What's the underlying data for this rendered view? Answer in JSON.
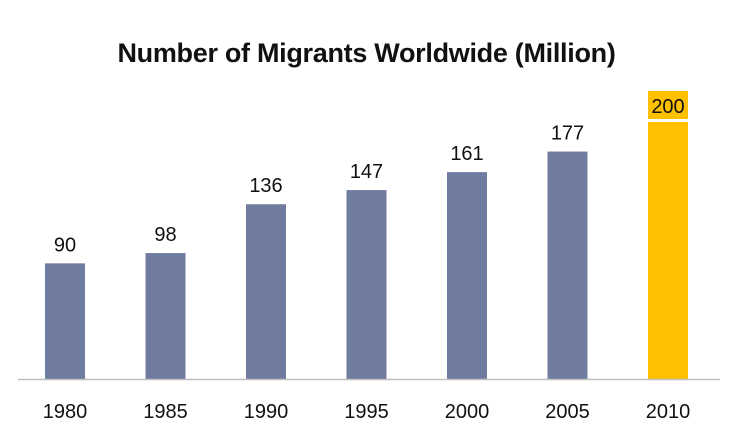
{
  "chart_data": {
    "type": "bar",
    "title": "Number of Migrants Worldwide (Million)",
    "categories": [
      "1980",
      "1985",
      "1990",
      "1995",
      "2000",
      "2005",
      "2010"
    ],
    "values": [
      90,
      98,
      136,
      147,
      161,
      177,
      200
    ],
    "ylim": [
      0,
      220
    ],
    "grid": false,
    "legend": "none",
    "colors": {
      "bar": "#707ba0",
      "highlight": "#ffc000",
      "highlight_label_bg": "#ffc000",
      "axis": "#bfbfbf",
      "text": "#111111"
    },
    "highlight_index": 6
  }
}
